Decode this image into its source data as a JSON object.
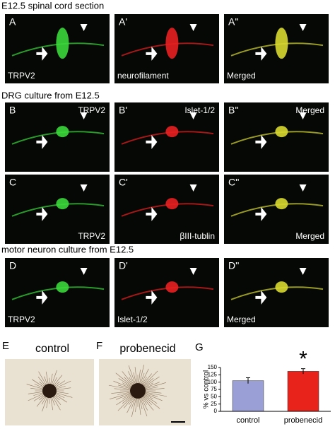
{
  "sections": [
    {
      "title": "E12.5 spinal cord section",
      "rows": [
        [
          {
            "letter": "A",
            "label": "TRPV2"
          },
          {
            "letter": "A'",
            "label": "neurofilament"
          },
          {
            "letter": "A''",
            "label": "Merged"
          }
        ]
      ]
    },
    {
      "title": "DRG culture from E12.5",
      "rows": [
        [
          {
            "letter": "B",
            "label": "TRPV2"
          },
          {
            "letter": "B'",
            "label": "Islet-1/2"
          },
          {
            "letter": "B''",
            "label": "Merged"
          }
        ],
        [
          {
            "letter": "C",
            "label": "TRPV2"
          },
          {
            "letter": "C'",
            "label": "βIII-tublin"
          },
          {
            "letter": "C''",
            "label": "Merged"
          }
        ]
      ]
    },
    {
      "title": "motor neuron culture from E12.5",
      "rows": [
        [
          {
            "letter": "D",
            "label": "TRPV2"
          },
          {
            "letter": "D'",
            "label": "Islet-1/2"
          },
          {
            "letter": "D''",
            "label": "Merged"
          }
        ]
      ]
    }
  ],
  "bottom_panels": [
    {
      "letter": "E",
      "label": "control"
    },
    {
      "letter": "F",
      "label": "probenecid"
    }
  ],
  "chart_data": {
    "type": "bar",
    "panel_letter": "G",
    "ylabel": "% vs control",
    "categories": [
      "control",
      "probenecid"
    ],
    "values": [
      105,
      137
    ],
    "errors": [
      10,
      9
    ],
    "colors": [
      "#9a9fd6",
      "#e8231c"
    ],
    "annotation": "*",
    "ylim": [
      0,
      150
    ],
    "yticks": [
      0,
      25,
      50,
      75,
      100,
      125,
      150
    ]
  }
}
